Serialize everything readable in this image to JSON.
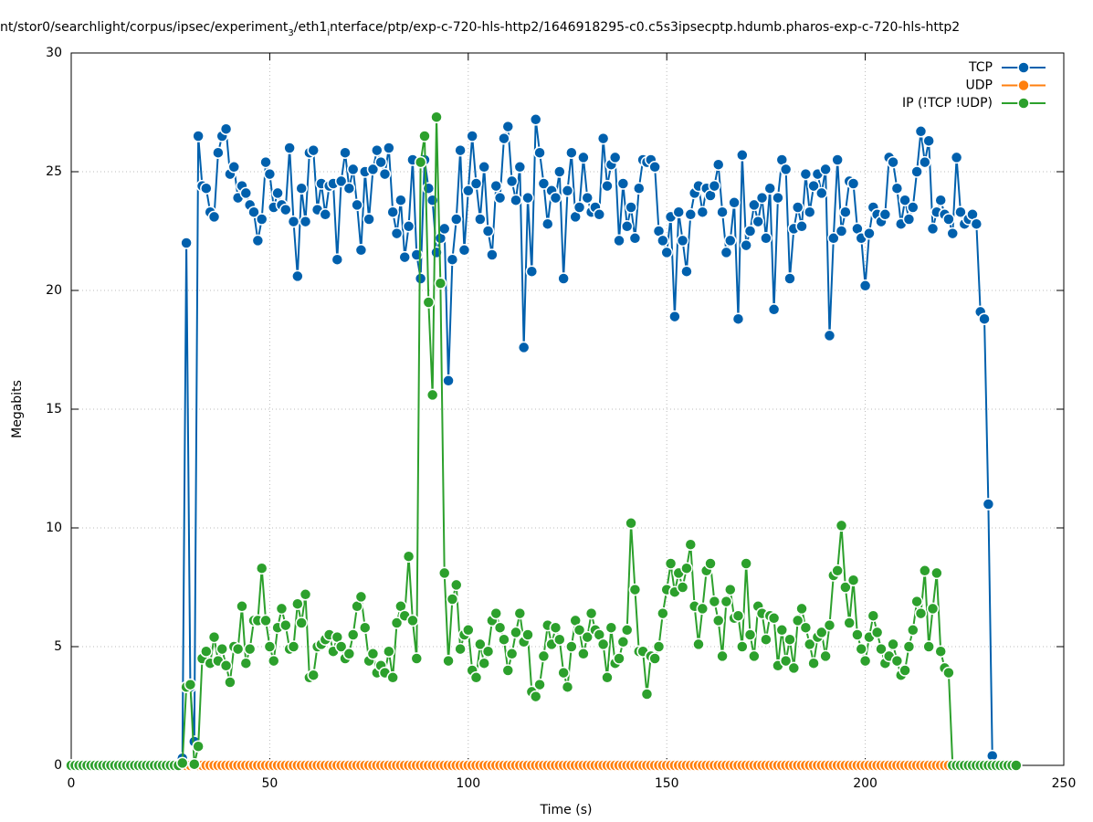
{
  "chart_data": {
    "type": "line",
    "title_parts": [
      "nt/stor0/searchlight/corpus/ipsec/experiment",
      "3",
      "/eth1",
      "i",
      "nterface/ptp/exp-c-720-hls-http2/1646918295-c0.c5s3ipsecptp.hdumb.pharos-exp-c-720-hls-http2"
    ],
    "x_label": "Time (s)",
    "y_label": "Megabits",
    "xlim": [
      0,
      250
    ],
    "xticks": [
      0,
      50,
      100,
      150,
      200,
      250
    ],
    "ylim": [
      0,
      30
    ],
    "yticks": [
      0,
      5,
      10,
      15,
      20,
      25,
      30
    ],
    "grid": true,
    "legend": "top-right",
    "x": [
      0,
      1,
      2,
      3,
      4,
      5,
      6,
      7,
      8,
      9,
      10,
      11,
      12,
      13,
      14,
      15,
      16,
      17,
      18,
      19,
      20,
      21,
      22,
      23,
      24,
      25,
      26,
      27,
      28,
      29,
      30,
      31,
      32,
      33,
      34,
      35,
      36,
      37,
      38,
      39,
      40,
      41,
      42,
      43,
      44,
      45,
      46,
      47,
      48,
      49,
      50,
      51,
      52,
      53,
      54,
      55,
      56,
      57,
      58,
      59,
      60,
      61,
      62,
      63,
      64,
      65,
      66,
      67,
      68,
      69,
      70,
      71,
      72,
      73,
      74,
      75,
      76,
      77,
      78,
      79,
      80,
      81,
      82,
      83,
      84,
      85,
      86,
      87,
      88,
      89,
      90,
      91,
      92,
      93,
      94,
      95,
      96,
      97,
      98,
      99,
      100,
      101,
      102,
      103,
      104,
      105,
      106,
      107,
      108,
      109,
      110,
      111,
      112,
      113,
      114,
      115,
      116,
      117,
      118,
      119,
      120,
      121,
      122,
      123,
      124,
      125,
      126,
      127,
      128,
      129,
      130,
      131,
      132,
      133,
      134,
      135,
      136,
      137,
      138,
      139,
      140,
      141,
      142,
      143,
      144,
      145,
      146,
      147,
      148,
      149,
      150,
      151,
      152,
      153,
      154,
      155,
      156,
      157,
      158,
      159,
      160,
      161,
      162,
      163,
      164,
      165,
      166,
      167,
      168,
      169,
      170,
      171,
      172,
      173,
      174,
      175,
      176,
      177,
      178,
      179,
      180,
      181,
      182,
      183,
      184,
      185,
      186,
      187,
      188,
      189,
      190,
      191,
      192,
      193,
      194,
      195,
      196,
      197,
      198,
      199,
      200,
      201,
      202,
      203,
      204,
      205,
      206,
      207,
      208,
      209,
      210,
      211,
      212,
      213,
      214,
      215,
      216,
      217,
      218,
      219,
      220,
      221,
      222,
      223,
      224,
      225,
      226,
      227,
      228,
      229,
      230,
      231,
      232,
      233,
      234,
      235,
      236,
      237,
      238
    ],
    "series": [
      {
        "name": "TCP",
        "color": "#0060ad",
        "values": [
          0,
          0,
          0,
          0,
          0,
          0,
          0,
          0,
          0,
          0,
          0,
          0,
          0,
          0,
          0,
          0,
          0,
          0,
          0,
          0,
          0,
          0,
          0,
          0,
          0,
          0,
          0,
          0,
          0.3,
          22.0,
          3.3,
          1.0,
          26.5,
          24.4,
          24.3,
          23.3,
          23.1,
          25.8,
          26.5,
          26.8,
          24.9,
          25.2,
          23.9,
          24.4,
          24.1,
          23.6,
          23.3,
          22.1,
          23.0,
          25.4,
          24.9,
          23.5,
          24.1,
          23.6,
          23.4,
          26.0,
          22.9,
          20.6,
          24.3,
          22.9,
          25.8,
          25.9,
          23.4,
          24.5,
          23.2,
          24.4,
          24.5,
          21.3,
          24.6,
          25.8,
          24.3,
          25.1,
          23.6,
          21.7,
          25.0,
          23.0,
          25.1,
          25.9,
          25.4,
          24.9,
          26.0,
          23.3,
          22.4,
          23.8,
          21.4,
          22.7,
          25.5,
          21.5,
          20.5,
          25.5,
          24.3,
          23.8,
          21.6,
          22.2,
          22.6,
          16.2,
          21.3,
          23.0,
          25.9,
          21.7,
          24.2,
          26.5,
          24.5,
          23.0,
          25.2,
          22.5,
          21.5,
          24.4,
          23.9,
          26.4,
          26.9,
          24.6,
          23.8,
          25.2,
          17.6,
          23.9,
          20.8,
          27.2,
          25.8,
          24.5,
          22.8,
          24.2,
          23.9,
          25.0,
          20.5,
          24.2,
          25.8,
          23.1,
          23.5,
          25.6,
          23.9,
          23.3,
          23.5,
          23.2,
          26.4,
          24.4,
          25.3,
          25.6,
          22.1,
          24.5,
          22.7,
          23.5,
          22.2,
          24.3,
          25.5,
          25.4,
          25.5,
          25.2,
          22.5,
          22.1,
          21.6,
          23.1,
          18.9,
          23.3,
          22.1,
          20.8,
          23.2,
          24.1,
          24.4,
          23.3,
          24.3,
          24.0,
          24.4,
          25.3,
          23.3,
          21.6,
          22.1,
          23.7,
          18.8,
          25.7,
          21.9,
          22.5,
          23.6,
          22.9,
          23.9,
          22.2,
          24.3,
          19.2,
          23.9,
          25.5,
          25.1,
          20.5,
          22.6,
          23.5,
          22.7,
          24.9,
          23.3,
          24.4,
          24.9,
          24.1,
          25.1,
          18.1,
          22.2,
          25.5,
          22.5,
          23.3,
          24.6,
          24.5,
          22.6,
          22.2,
          20.2,
          22.4,
          23.5,
          23.2,
          22.9,
          23.2,
          25.6,
          25.4,
          24.3,
          22.8,
          23.8,
          23.0,
          23.5,
          25.0,
          26.7,
          25.4,
          26.3,
          22.6,
          23.3,
          23.8,
          23.2,
          23.0,
          22.4,
          25.6,
          23.3,
          22.8,
          23.0,
          23.2,
          22.8,
          19.1,
          18.8,
          11.0,
          0.4,
          0,
          0,
          0,
          0,
          0,
          0
        ]
      },
      {
        "name": "UDP",
        "color": "#ff7f0e",
        "values": [
          0,
          0,
          0,
          0,
          0,
          0,
          0,
          0,
          0,
          0,
          0,
          0,
          0,
          0,
          0,
          0,
          0,
          0,
          0,
          0,
          0,
          0,
          0,
          0,
          0,
          0,
          0,
          0,
          0,
          0,
          0,
          0,
          0,
          0,
          0,
          0,
          0,
          0,
          0,
          0,
          0,
          0,
          0,
          0,
          0,
          0,
          0,
          0,
          0,
          0,
          0,
          0,
          0,
          0,
          0,
          0,
          0,
          0,
          0,
          0,
          0,
          0,
          0,
          0,
          0,
          0,
          0,
          0,
          0,
          0,
          0,
          0,
          0,
          0,
          0,
          0,
          0,
          0,
          0,
          0,
          0,
          0,
          0,
          0,
          0,
          0,
          0,
          0,
          0,
          0,
          0,
          0,
          0,
          0,
          0,
          0,
          0,
          0,
          0,
          0,
          0,
          0,
          0,
          0,
          0,
          0,
          0,
          0,
          0,
          0,
          0,
          0,
          0,
          0,
          0,
          0,
          0,
          0,
          0,
          0,
          0,
          0,
          0,
          0,
          0,
          0,
          0,
          0,
          0,
          0,
          0,
          0,
          0,
          0,
          0,
          0,
          0,
          0,
          0,
          0,
          0,
          0,
          0,
          0,
          0,
          0,
          0,
          0,
          0,
          0,
          0,
          0,
          0,
          0,
          0,
          0,
          0,
          0,
          0,
          0,
          0,
          0,
          0,
          0,
          0,
          0,
          0,
          0,
          0,
          0,
          0,
          0,
          0,
          0,
          0,
          0,
          0,
          0,
          0,
          0,
          0,
          0,
          0,
          0,
          0,
          0,
          0,
          0,
          0,
          0,
          0,
          0,
          0,
          0,
          0,
          0,
          0,
          0,
          0,
          0,
          0,
          0,
          0,
          0,
          0,
          0,
          0,
          0,
          0,
          0,
          0,
          0,
          0,
          0,
          0,
          0,
          0,
          0,
          0,
          0,
          0,
          0,
          0,
          0,
          0,
          0,
          0,
          0,
          0,
          0,
          0,
          0,
          0,
          0,
          0,
          0,
          0,
          0,
          0
        ]
      },
      {
        "name": "IP (!TCP  !UDP)",
        "color": "#2ca02c",
        "values": [
          0,
          0,
          0,
          0,
          0,
          0,
          0,
          0,
          0,
          0,
          0,
          0,
          0,
          0,
          0,
          0,
          0,
          0,
          0,
          0,
          0,
          0,
          0,
          0,
          0,
          0,
          0,
          0,
          0.1,
          3.3,
          3.4,
          0.05,
          0.8,
          4.5,
          4.8,
          4.3,
          5.4,
          4.4,
          4.9,
          4.2,
          3.5,
          5.0,
          4.9,
          6.7,
          4.3,
          4.9,
          6.1,
          6.1,
          8.3,
          6.1,
          5.0,
          4.4,
          5.8,
          6.6,
          5.9,
          4.9,
          5.0,
          6.8,
          6.0,
          7.2,
          3.7,
          3.8,
          5.0,
          5.1,
          5.3,
          5.5,
          4.8,
          5.4,
          5.0,
          4.5,
          4.7,
          5.5,
          6.7,
          7.1,
          5.8,
          4.4,
          4.7,
          3.9,
          4.2,
          3.9,
          4.8,
          3.7,
          6.0,
          6.7,
          6.3,
          8.8,
          6.1,
          4.5,
          25.4,
          26.5,
          19.5,
          15.6,
          27.3,
          20.3,
          8.1,
          4.4,
          7.0,
          7.6,
          4.9,
          5.5,
          5.7,
          4.0,
          3.7,
          5.1,
          4.3,
          4.8,
          6.1,
          6.4,
          5.8,
          5.3,
          4.0,
          4.7,
          5.6,
          6.4,
          5.2,
          5.5,
          3.1,
          2.9,
          3.4,
          4.6,
          5.9,
          5.1,
          5.8,
          5.3,
          3.9,
          3.3,
          5.0,
          6.1,
          5.7,
          4.7,
          5.4,
          6.4,
          5.7,
          5.5,
          5.1,
          3.7,
          5.8,
          4.3,
          4.5,
          5.2,
          5.7,
          10.2,
          7.4,
          4.8,
          4.8,
          3.0,
          4.6,
          4.5,
          5.0,
          6.4,
          7.4,
          8.5,
          7.3,
          8.1,
          7.5,
          8.3,
          9.3,
          6.7,
          5.1,
          6.6,
          8.2,
          8.5,
          6.9,
          6.1,
          4.6,
          6.9,
          7.4,
          6.2,
          6.3,
          5.0,
          8.5,
          5.5,
          4.6,
          6.7,
          6.4,
          5.3,
          6.3,
          6.2,
          4.2,
          5.7,
          4.4,
          5.3,
          4.1,
          6.1,
          6.6,
          5.8,
          5.1,
          4.3,
          5.4,
          5.6,
          4.6,
          5.9,
          8.0,
          8.2,
          10.1,
          7.5,
          6.0,
          7.8,
          5.5,
          4.9,
          4.4,
          5.4,
          6.3,
          5.6,
          4.9,
          4.3,
          4.6,
          5.1,
          4.4,
          3.8,
          4.0,
          5.0,
          5.7,
          6.9,
          6.4,
          8.2,
          5.0,
          6.6,
          8.1,
          4.8,
          4.1,
          3.9,
          0,
          0,
          0,
          0,
          0,
          0,
          0,
          0,
          0,
          0,
          0,
          0,
          0,
          0,
          0,
          0,
          0
        ]
      }
    ]
  }
}
